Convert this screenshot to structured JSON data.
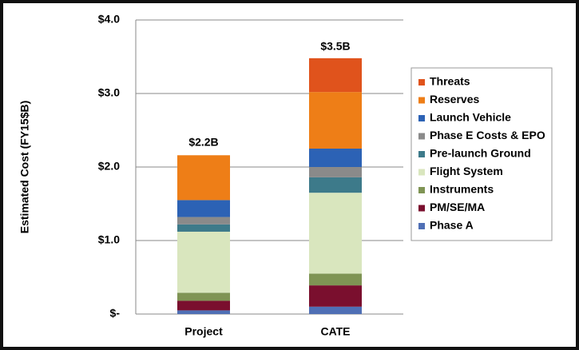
{
  "chart_data": {
    "type": "stacked-bar",
    "y_label": "Estimated Cost (FY15$B)",
    "categories": [
      "Project",
      "CATE"
    ],
    "ylim": [
      0,
      4.0
    ],
    "yticks": [
      {
        "value": 0,
        "label": "$-"
      },
      {
        "value": 1.0,
        "label": "$1.0"
      },
      {
        "value": 2.0,
        "label": "$2.0"
      },
      {
        "value": 3.0,
        "label": "$3.0"
      },
      {
        "value": 4.0,
        "label": "$4.0"
      }
    ],
    "grid": true,
    "legend": "right",
    "series": [
      {
        "name": "Phase A",
        "color": "#4f6fb5",
        "values": [
          0.05,
          0.1
        ]
      },
      {
        "name": "PM/SE/MA",
        "color": "#7a0f2e",
        "values": [
          0.13,
          0.29
        ]
      },
      {
        "name": "Instruments",
        "color": "#7f9454",
        "values": [
          0.11,
          0.16
        ]
      },
      {
        "name": "Flight System",
        "color": "#d9e6be",
        "values": [
          0.83,
          1.1
        ]
      },
      {
        "name": "Pre-launch Ground",
        "color": "#3d7a8a",
        "values": [
          0.1,
          0.21
        ]
      },
      {
        "name": "Phase E Costs & EPO",
        "color": "#8a8a8a",
        "values": [
          0.1,
          0.14
        ]
      },
      {
        "name": "Launch Vehicle",
        "color": "#2c62b5",
        "values": [
          0.23,
          0.25
        ]
      },
      {
        "name": "Reserves",
        "color": "#ee7e17",
        "values": [
          0.61,
          0.77
        ]
      },
      {
        "name": "Threats",
        "color": "#e0531c",
        "values": [
          0,
          0.46
        ]
      }
    ],
    "totals": {
      "values": [
        2.2,
        3.5
      ],
      "value_labels": [
        "$2.2B",
        "$3.5B"
      ]
    }
  }
}
